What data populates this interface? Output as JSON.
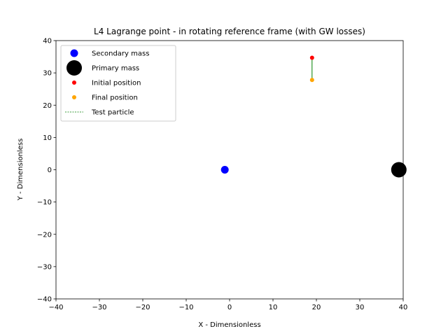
{
  "chart_data": {
    "type": "scatter",
    "title": "L4 Lagrange point - in rotating reference frame (with GW losses)",
    "xlabel": "X - Dimensionless",
    "ylabel": "Y - Dimensionless",
    "xlim": [
      -40,
      40
    ],
    "ylim": [
      -40,
      40
    ],
    "xticks": [
      -40,
      -30,
      -20,
      -10,
      0,
      10,
      20,
      30,
      40
    ],
    "yticks": [
      -40,
      -30,
      -20,
      -10,
      0,
      10,
      20,
      30,
      40
    ],
    "xtick_labels": [
      "−40",
      "−30",
      "−20",
      "−10",
      "0",
      "10",
      "20",
      "30",
      "40"
    ],
    "ytick_labels": [
      "−40",
      "−30",
      "−20",
      "−10",
      "0",
      "10",
      "20",
      "30",
      "40"
    ],
    "grid": false,
    "legend_position": "top-left",
    "series": [
      {
        "name": "Secondary mass",
        "kind": "marker",
        "color": "#0000ff",
        "marker_size": "medium",
        "points": [
          [
            -1.1,
            0
          ]
        ]
      },
      {
        "name": "Primary mass",
        "kind": "marker",
        "color": "#000000",
        "marker_size": "large",
        "points": [
          [
            39,
            0
          ]
        ]
      },
      {
        "name": "Initial position",
        "kind": "marker",
        "color": "#ff0000",
        "marker_size": "small",
        "points": [
          [
            19,
            34.7
          ]
        ]
      },
      {
        "name": "Final position",
        "kind": "marker",
        "color": "#ffa500",
        "marker_size": "small",
        "points": [
          [
            19,
            27.8
          ]
        ]
      },
      {
        "name": "Test particle",
        "kind": "line",
        "color": "#008000",
        "line_style": "dashed",
        "points": [
          [
            19,
            34.7
          ],
          [
            19,
            27.8
          ]
        ]
      }
    ]
  }
}
